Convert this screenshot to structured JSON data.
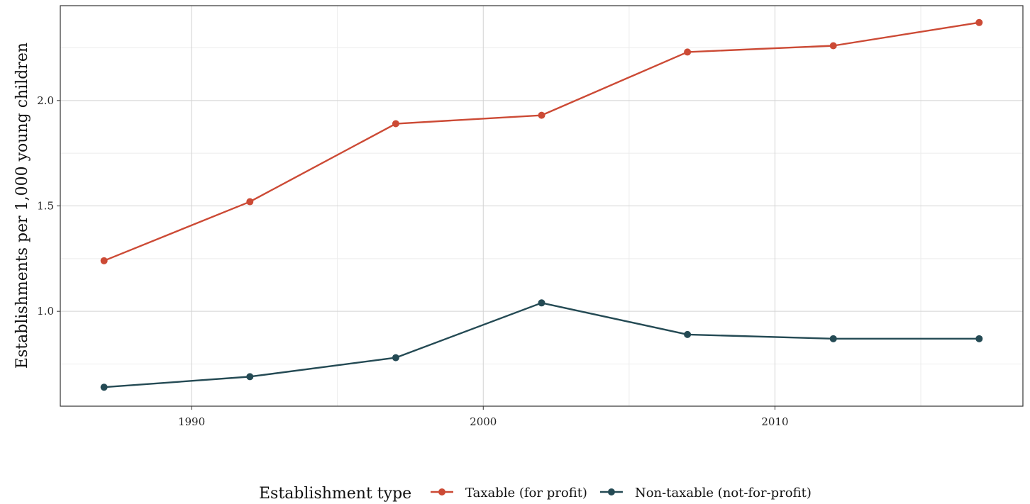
{
  "chart_data": {
    "type": "line",
    "title": "",
    "xlabel": "",
    "ylabel": "Establishments per 1,000 young children",
    "x": [
      1987,
      1992,
      1997,
      2002,
      2007,
      2012,
      2017
    ],
    "xlim": [
      1985.5,
      2018.5
    ],
    "ylim": [
      0.55,
      2.45
    ],
    "x_ticks": [
      1990,
      2000,
      2010
    ],
    "y_ticks": [
      1.0,
      1.5,
      2.0
    ],
    "x_tick_labels": [
      "1990",
      "2000",
      "2010"
    ],
    "y_tick_labels": [
      "1.0",
      "1.5",
      "2.0"
    ],
    "grid": true,
    "legend_title": "Establishment type",
    "legend_position": "bottom",
    "series": [
      {
        "name": "Taxable (for profit)",
        "color": "#cc4a35",
        "values": [
          1.24,
          1.52,
          1.89,
          1.93,
          2.23,
          2.26,
          2.37
        ]
      },
      {
        "name": "Non-taxable (not-for-profit)",
        "color": "#244a54",
        "values": [
          0.64,
          0.69,
          0.78,
          1.04,
          0.89,
          0.87,
          0.87
        ]
      }
    ]
  }
}
